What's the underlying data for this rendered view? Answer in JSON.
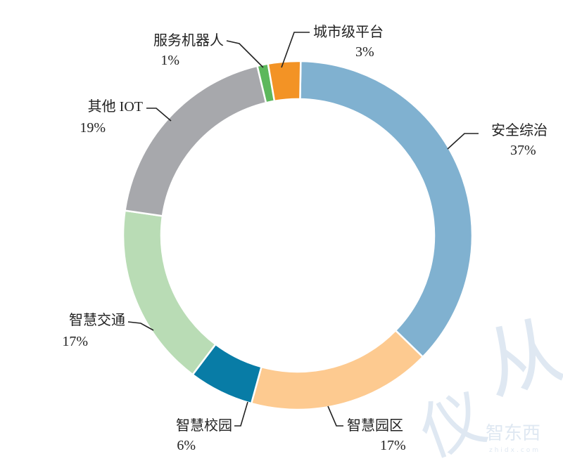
{
  "chart_data": {
    "type": "pie",
    "donut": true,
    "categories": [
      "安全综治",
      "智慧园区",
      "智慧校园",
      "智慧交通",
      "其他 IOT",
      "服务机器人",
      "城市级平台"
    ],
    "values": [
      37,
      17,
      6,
      17,
      19,
      1,
      3
    ],
    "value_labels": [
      "37%",
      "17%",
      "6%",
      "17%",
      "19%",
      "1%",
      "3%"
    ],
    "colors": [
      "#80b1d0",
      "#fdca90",
      "#087ca6",
      "#b9dcb5",
      "#a7a8ac",
      "#5cb85c",
      "#f39325"
    ],
    "start": "top",
    "direction": "clockwise",
    "legend": "none"
  },
  "watermark": {
    "text": "智东西",
    "subtext": "zhidx.com"
  }
}
